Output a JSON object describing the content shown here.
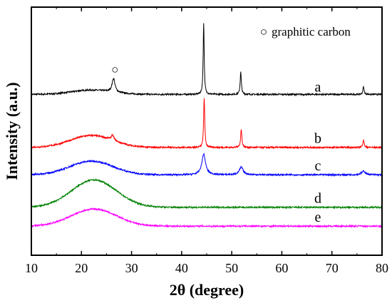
{
  "chart_data": {
    "type": "line",
    "xlabel": "2θ (degree)",
    "ylabel": "Intensity (a.u.)",
    "xlim": [
      10,
      80
    ],
    "x_ticks": [
      10,
      20,
      30,
      40,
      50,
      60,
      70,
      80
    ],
    "y_ticks_labeled": false,
    "grid": false,
    "legend_position": "top-right",
    "annotation": {
      "symbol": "○",
      "label": "graphitic carbon",
      "marks_peak_at_x": 26.4,
      "marks_series": "a"
    },
    "series": [
      {
        "name": "a",
        "color": "#000000",
        "baseline": 9.4,
        "hump": {
          "center": 22,
          "width": 4.0,
          "height": 0.25
        },
        "peaks": [
          {
            "x": 26.4,
            "height": 0.8,
            "width": 0.35
          },
          {
            "x": 44.4,
            "height": 4.2,
            "width": 0.12
          },
          {
            "x": 51.8,
            "height": 1.3,
            "width": 0.14
          },
          {
            "x": 76.3,
            "height": 0.45,
            "width": 0.14
          }
        ]
      },
      {
        "name": "b",
        "color": "#ff0000",
        "baseline": 6.3,
        "hump": {
          "center": 22,
          "width": 4.2,
          "height": 0.7
        },
        "peaks": [
          {
            "x": 26.2,
            "height": 0.3,
            "width": 0.35
          },
          {
            "x": 44.5,
            "height": 2.9,
            "width": 0.13
          },
          {
            "x": 51.9,
            "height": 1.05,
            "width": 0.15
          },
          {
            "x": 76.3,
            "height": 0.45,
            "width": 0.15
          }
        ]
      },
      {
        "name": "c",
        "color": "#0000ff",
        "baseline": 4.7,
        "hump": {
          "center": 22,
          "width": 4.3,
          "height": 0.8
        },
        "peaks": [
          {
            "x": 44.4,
            "height": 1.2,
            "width": 0.45
          },
          {
            "x": 51.9,
            "height": 0.45,
            "width": 0.45
          },
          {
            "x": 76.3,
            "height": 0.2,
            "width": 0.5
          }
        ]
      },
      {
        "name": "d",
        "color": "#008000",
        "baseline": 2.8,
        "hump": {
          "center": 22.5,
          "width": 4.5,
          "height": 1.6
        },
        "peaks": []
      },
      {
        "name": "e",
        "color": "#ff00ff",
        "baseline": 1.7,
        "hump": {
          "center": 22.5,
          "width": 4.5,
          "height": 1.0
        },
        "peaks": []
      }
    ]
  }
}
